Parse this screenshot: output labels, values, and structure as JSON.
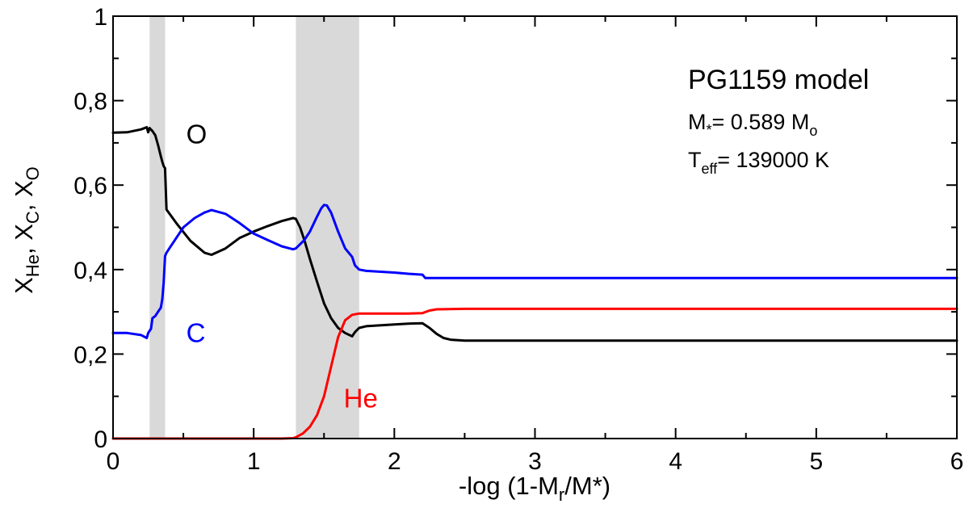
{
  "chart_data": {
    "type": "line",
    "xlabel": {
      "main": "-log (1-M",
      "sub": "r",
      "mid": "/M",
      "end": "*)"
    },
    "ylabel": {
      "parts": [
        {
          "t": "X",
          "sub": "He"
        },
        {
          "t": ", X",
          "sub": "C"
        },
        {
          "t": ", X",
          "sub": "O"
        }
      ]
    },
    "xlim": [
      0,
      6
    ],
    "ylim": [
      0,
      1
    ],
    "xticks": [
      {
        "v": 0,
        "label": "0"
      },
      {
        "v": 1,
        "label": "1"
      },
      {
        "v": 2,
        "label": "2"
      },
      {
        "v": 3,
        "label": "3"
      },
      {
        "v": 4,
        "label": "4"
      },
      {
        "v": 5,
        "label": "5"
      },
      {
        "v": 6,
        "label": "6"
      }
    ],
    "yticks": [
      {
        "v": 0,
        "label": "0"
      },
      {
        "v": 0.2,
        "label": "0,2"
      },
      {
        "v": 0.4,
        "label": "0,4"
      },
      {
        "v": 0.6,
        "label": "0,6"
      },
      {
        "v": 0.8,
        "label": "0,8"
      },
      {
        "v": 1,
        "label": "1"
      }
    ],
    "shaded_bands": [
      {
        "x0": 0.26,
        "x1": 0.37,
        "color": "#d9d9d9"
      },
      {
        "x0": 1.3,
        "x1": 1.75,
        "color": "#d9d9d9"
      }
    ],
    "annotations": {
      "title": "PG1159 model",
      "mass": {
        "pre": "M",
        "sub1": "*",
        "mid": "= 0.589 M",
        "sub2": "o"
      },
      "teff": {
        "pre": "T",
        "sub": "eff",
        "post": "= 139000 K"
      }
    },
    "series": [
      {
        "name": "O",
        "color": "#000000",
        "label_pos": [
          0.52,
          0.72
        ],
        "x": [
          0,
          0.1,
          0.2,
          0.24,
          0.25,
          0.26,
          0.28,
          0.3,
          0.32,
          0.34,
          0.35,
          0.36,
          0.37,
          0.38,
          0.45,
          0.55,
          0.65,
          0.7,
          0.8,
          0.9,
          1.0,
          1.1,
          1.2,
          1.28,
          1.3,
          1.33,
          1.36,
          1.4,
          1.45,
          1.5,
          1.55,
          1.6,
          1.65,
          1.7,
          1.72,
          1.75,
          1.8,
          2.0,
          2.1,
          2.2,
          2.25,
          2.3,
          2.35,
          2.4,
          2.5,
          3,
          4,
          5,
          6
        ],
        "y": [
          0.724,
          0.725,
          0.732,
          0.737,
          0.725,
          0.735,
          0.728,
          0.718,
          0.695,
          0.668,
          0.655,
          0.645,
          0.64,
          0.542,
          0.51,
          0.468,
          0.44,
          0.435,
          0.45,
          0.475,
          0.49,
          0.503,
          0.515,
          0.522,
          0.52,
          0.5,
          0.47,
          0.425,
          0.372,
          0.32,
          0.285,
          0.262,
          0.25,
          0.242,
          0.252,
          0.262,
          0.266,
          0.27,
          0.272,
          0.273,
          0.262,
          0.248,
          0.238,
          0.234,
          0.232,
          0.232,
          0.232,
          0.232,
          0.232
        ]
      },
      {
        "name": "C",
        "color": "#0000ff",
        "label_pos": [
          0.52,
          0.25
        ],
        "x": [
          0,
          0.1,
          0.2,
          0.24,
          0.25,
          0.27,
          0.28,
          0.3,
          0.32,
          0.34,
          0.35,
          0.36,
          0.37,
          0.38,
          0.42,
          0.5,
          0.58,
          0.65,
          0.7,
          0.8,
          0.9,
          1.0,
          1.1,
          1.2,
          1.28,
          1.3,
          1.33,
          1.36,
          1.4,
          1.45,
          1.48,
          1.5,
          1.52,
          1.55,
          1.6,
          1.65,
          1.7,
          1.72,
          1.75,
          1.8,
          2.0,
          2.1,
          2.2,
          2.22,
          2.5,
          3,
          4,
          5,
          6
        ],
        "y": [
          0.25,
          0.25,
          0.245,
          0.238,
          0.25,
          0.26,
          0.285,
          0.29,
          0.3,
          0.31,
          0.33,
          0.37,
          0.432,
          0.44,
          0.46,
          0.5,
          0.522,
          0.535,
          0.541,
          0.532,
          0.51,
          0.485,
          0.47,
          0.455,
          0.448,
          0.45,
          0.46,
          0.47,
          0.49,
          0.525,
          0.545,
          0.553,
          0.552,
          0.535,
          0.49,
          0.45,
          0.43,
          0.41,
          0.4,
          0.397,
          0.393,
          0.39,
          0.388,
          0.38,
          0.38,
          0.38,
          0.38,
          0.38,
          0.38
        ]
      },
      {
        "name": "He",
        "color": "#ff0000",
        "label_pos": [
          1.64,
          0.095
        ],
        "x": [
          0,
          0.5,
          1.0,
          1.2,
          1.28,
          1.3,
          1.35,
          1.4,
          1.45,
          1.5,
          1.55,
          1.6,
          1.65,
          1.7,
          1.75,
          1.8,
          2.0,
          2.1,
          2.2,
          2.25,
          2.3,
          2.5,
          3,
          4,
          5,
          6
        ],
        "y": [
          0,
          0,
          0,
          0,
          0.001,
          0.003,
          0.012,
          0.028,
          0.055,
          0.1,
          0.17,
          0.24,
          0.28,
          0.293,
          0.296,
          0.296,
          0.296,
          0.296,
          0.297,
          0.303,
          0.306,
          0.307,
          0.307,
          0.307,
          0.307,
          0.307
        ]
      }
    ]
  }
}
